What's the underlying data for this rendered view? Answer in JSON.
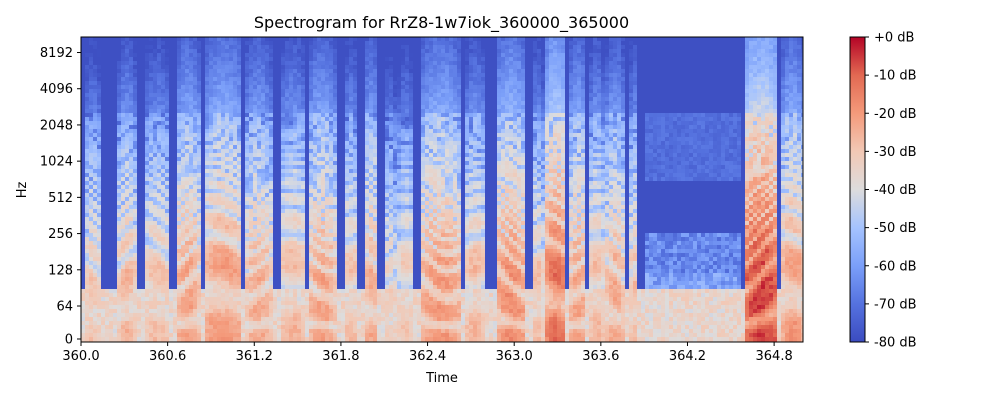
{
  "chart_data": {
    "type": "heatmap",
    "title": "Spectrogram for RrZ8-1w7iok_360000_365000",
    "xlabel": "Time",
    "ylabel": "Hz",
    "xlim": [
      360.0,
      365.0
    ],
    "x_ticks": [
      360.0,
      360.6,
      361.2,
      361.8,
      362.4,
      363.0,
      363.6,
      364.2,
      364.8
    ],
    "x_tick_labels": [
      "360.0",
      "360.6",
      "361.2",
      "361.8",
      "362.4",
      "363.0",
      "363.6",
      "364.2",
      "364.8"
    ],
    "y_scale": "symlog",
    "ylim": [
      0,
      11025
    ],
    "y_ticks": [
      0,
      64,
      128,
      256,
      512,
      1024,
      2048,
      4096,
      8192
    ],
    "y_tick_labels": [
      "0",
      "64",
      "128",
      "256",
      "512",
      "1024",
      "2048",
      "4096",
      "8192"
    ],
    "colormap": "coolwarm",
    "colors": {
      "low": "#3b4cc0",
      "mid": "#dddcdc",
      "high": "#b40426"
    },
    "colorbar": {
      "range_db": [
        -80,
        0
      ],
      "ticks": [
        0,
        -10,
        -20,
        -30,
        -40,
        -50,
        -60,
        -70,
        -80
      ],
      "tick_labels": [
        "+0 dB",
        "-10 dB",
        "-20 dB",
        "-30 dB",
        "-40 dB",
        "-50 dB",
        "-60 dB",
        "-70 dB",
        "-80 dB"
      ]
    },
    "voiced_segments": [
      {
        "start": 360.02,
        "end": 360.14,
        "peak_db": -32
      },
      {
        "start": 360.26,
        "end": 360.38,
        "peak_db": -28
      },
      {
        "start": 360.44,
        "end": 360.62,
        "peak_db": -30
      },
      {
        "start": 360.66,
        "end": 360.82,
        "peak_db": -24
      },
      {
        "start": 360.86,
        "end": 361.12,
        "peak_db": -22
      },
      {
        "start": 361.14,
        "end": 361.32,
        "peak_db": -26
      },
      {
        "start": 361.38,
        "end": 361.56,
        "peak_db": -28
      },
      {
        "start": 361.58,
        "end": 361.76,
        "peak_db": -24
      },
      {
        "start": 361.82,
        "end": 361.92,
        "peak_db": -30
      },
      {
        "start": 361.96,
        "end": 362.06,
        "peak_db": -26
      },
      {
        "start": 362.1,
        "end": 362.18,
        "peak_db": -34
      },
      {
        "start": 362.2,
        "end": 362.3,
        "peak_db": -32
      },
      {
        "start": 362.36,
        "end": 362.62,
        "peak_db": -22
      },
      {
        "start": 362.66,
        "end": 362.8,
        "peak_db": -28
      },
      {
        "start": 362.88,
        "end": 363.08,
        "peak_db": -20
      },
      {
        "start": 363.12,
        "end": 363.2,
        "peak_db": -30
      },
      {
        "start": 363.22,
        "end": 363.36,
        "peak_db": -14
      },
      {
        "start": 363.38,
        "end": 363.5,
        "peak_db": -24
      },
      {
        "start": 363.52,
        "end": 363.62,
        "peak_db": -28
      },
      {
        "start": 363.64,
        "end": 363.76,
        "peak_db": -26
      },
      {
        "start": 363.8,
        "end": 363.86,
        "peak_db": -30
      },
      {
        "start": 364.6,
        "end": 364.82,
        "peak_db": -8
      },
      {
        "start": 364.86,
        "end": 365.0,
        "peak_db": -22
      }
    ]
  }
}
